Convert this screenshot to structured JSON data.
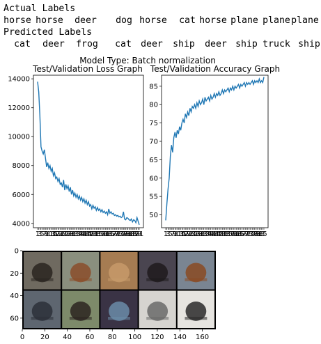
{
  "output": {
    "actual_header": "Actual Labels",
    "actual_labels": [
      "horse",
      "horse",
      "deer",
      "dog",
      "horse",
      "cat",
      "horse",
      "plane",
      "plane",
      "plane"
    ],
    "predicted_header": "Predicted Labels",
    "predicted_labels": [
      "cat",
      "deer",
      "frog",
      "cat",
      "deer",
      "ship",
      "deer",
      "ship",
      "truck",
      "ship"
    ]
  },
  "chart_data": [
    {
      "type": "line",
      "suptitle": "Model Type: Batch normalization",
      "title": "Test/Validation Loss Graph",
      "xlabel": "",
      "ylabel": "",
      "ylim": [
        3700,
        14250
      ],
      "yticks": [
        4000,
        6000,
        8000,
        10000,
        12000,
        14000
      ],
      "series": [
        {
          "color": "#1f77b4",
          "values": [
            13800,
            13100,
            11500,
            9300,
            9000,
            8800,
            9100,
            8500,
            7900,
            8200,
            7800,
            8000,
            7600,
            7800,
            7300,
            7500,
            7100,
            7200,
            6900,
            7100,
            6700,
            6800,
            6500,
            7000,
            6300,
            6700,
            6400,
            6600,
            6200,
            6500,
            6000,
            6300,
            5900,
            6100,
            5800,
            6000,
            5700,
            5900,
            5600,
            5800,
            5500,
            5700,
            5400,
            5600,
            5300,
            5500,
            5200,
            5300,
            5000,
            5250,
            5050,
            5150,
            4900,
            5100,
            4900,
            5000,
            4800,
            4950,
            4750,
            4850,
            4700,
            4800,
            4600,
            5000,
            4700,
            4800,
            4650,
            4700,
            4550,
            4600,
            4500,
            4550,
            4450,
            4500,
            4400,
            4450,
            4800,
            4300,
            4250,
            4400,
            4350,
            4250,
            4200,
            4300,
            4100,
            4250,
            4200,
            4050,
            4400,
            4150,
            3900
          ]
        }
      ]
    },
    {
      "type": "line",
      "title": "Test/Validation Accuracy Graph",
      "xlabel": "",
      "ylabel": "",
      "ylim": [
        46.5,
        88
      ],
      "yticks": [
        50,
        55,
        60,
        65,
        70,
        75,
        80,
        85
      ],
      "series": [
        {
          "color": "#1f77b4",
          "values": [
            48.5,
            53,
            57,
            60,
            66,
            69,
            67,
            71,
            72.5,
            71,
            73,
            72,
            74,
            73,
            75,
            76,
            75,
            77.5,
            76.5,
            78,
            77,
            79,
            78,
            79.5,
            79,
            80,
            79,
            80.5,
            79.5,
            81,
            80,
            80.5,
            81.5,
            80,
            82,
            81,
            81.5,
            82,
            81,
            82.5,
            81.5,
            82,
            83,
            82,
            83,
            82.5,
            83.5,
            82.5,
            83,
            84,
            83,
            84,
            83.5,
            84,
            84.5,
            83.5,
            84.5,
            84,
            85,
            84,
            85,
            84.5,
            85,
            85.5,
            84.5,
            85.5,
            85,
            85.5,
            86,
            85,
            86,
            85.5,
            86,
            85.5,
            86,
            86.5,
            85.5,
            86.5,
            86,
            86.5,
            86,
            87,
            86,
            86.5,
            86,
            87.5
          ]
        }
      ]
    },
    {
      "type": "image-grid",
      "x_ticks": [
        0,
        20,
        40,
        60,
        80,
        100,
        120,
        140,
        160
      ],
      "y_ticks": [
        0,
        20,
        40,
        60
      ],
      "xlim": [
        0,
        172
      ],
      "ylim": [
        0,
        70
      ],
      "tiles": [
        {
          "bg": "#6f6a60",
          "fg": "#2a2420"
        },
        {
          "bg": "#8a8f7e",
          "fg": "#8a4e2a"
        },
        {
          "bg": "#a67c52",
          "fg": "#c79a6a"
        },
        {
          "bg": "#4a4550",
          "fg": "#1e1a1c"
        },
        {
          "bg": "#7a8592",
          "fg": "#8a4a22"
        },
        {
          "bg": "#5e6670",
          "fg": "#2c3038"
        },
        {
          "bg": "#7d8a6a",
          "fg": "#2b2420"
        },
        {
          "bg": "#3a3345",
          "fg": "#6b8ca8"
        },
        {
          "bg": "#d6d4d0",
          "fg": "#6a6a6a"
        },
        {
          "bg": "#e6e4e0",
          "fg": "#2a2a2a"
        }
      ]
    }
  ]
}
